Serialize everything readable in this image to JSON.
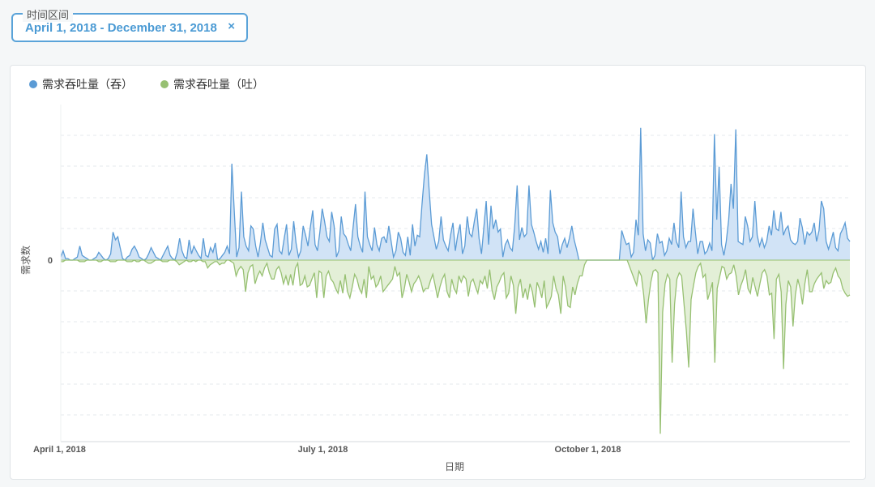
{
  "filter": {
    "label": "时间区间",
    "value": "April 1, 2018 - December 31, 2018",
    "clear_icon": "×"
  },
  "chart_data": {
    "type": "area",
    "title": "",
    "xlabel": "日期",
    "ylabel": "需求数",
    "x_start": "2018-04-01",
    "x_end": "2018-12-31",
    "x_ticks": [
      {
        "date": "2018-04-01",
        "label": "April 1, 2018"
      },
      {
        "date": "2018-07-01",
        "label": "July 1, 2018"
      },
      {
        "date": "2018-10-01",
        "label": "October 1, 2018"
      }
    ],
    "y_ticks": [
      {
        "value": 0,
        "label": "0"
      }
    ],
    "ylim": [
      -115,
      100
    ],
    "grid": true,
    "legend": "top-left",
    "series": [
      {
        "name": "需求吞吐量（吞）",
        "color": "#5b9bd5",
        "fill": "#cfe2f5",
        "values": [
          2,
          6,
          1,
          1,
          0,
          0,
          1,
          2,
          9,
          3,
          2,
          1,
          0,
          0,
          1,
          2,
          5,
          3,
          1,
          0,
          1,
          4,
          18,
          13,
          15,
          8,
          1,
          0,
          2,
          3,
          7,
          9,
          6,
          2,
          1,
          0,
          1,
          4,
          8,
          5,
          2,
          1,
          0,
          3,
          6,
          9,
          3,
          1,
          0,
          5,
          14,
          6,
          2,
          1,
          13,
          4,
          9,
          6,
          3,
          1,
          14,
          3,
          2,
          8,
          5,
          11,
          0,
          1,
          3,
          5,
          9,
          4,
          62,
          31,
          2,
          8,
          44,
          15,
          9,
          6,
          22,
          20,
          9,
          2,
          11,
          24,
          13,
          8,
          3,
          2,
          20,
          23,
          6,
          4,
          14,
          23,
          3,
          7,
          25,
          11,
          2,
          6,
          22,
          16,
          9,
          21,
          32,
          10,
          6,
          18,
          33,
          25,
          15,
          12,
          31,
          22,
          2,
          6,
          28,
          17,
          15,
          10,
          6,
          21,
          36,
          15,
          9,
          5,
          44,
          15,
          10,
          6,
          21,
          10,
          6,
          14,
          15,
          11,
          22,
          12,
          2,
          6,
          18,
          14,
          5,
          3,
          15,
          3,
          23,
          9,
          16,
          15,
          36,
          55,
          68,
          45,
          23,
          15,
          7,
          12,
          28,
          13,
          9,
          6,
          16,
          24,
          6,
          16,
          23,
          4,
          9,
          28,
          17,
          15,
          25,
          33,
          14,
          4,
          21,
          38,
          10,
          35,
          20,
          26,
          18,
          20,
          2,
          10,
          13,
          8,
          6,
          22,
          48,
          13,
          21,
          15,
          17,
          48,
          23,
          18,
          12,
          7,
          12,
          5,
          14,
          4,
          45,
          24,
          18,
          15,
          4,
          10,
          14,
          8,
          14,
          22,
          13,
          7,
          0,
          0,
          0,
          0,
          0,
          0,
          0,
          0,
          0,
          0,
          0,
          0,
          0,
          0,
          0,
          0,
          0,
          0,
          19,
          14,
          10,
          11,
          2,
          5,
          26,
          16,
          85,
          17,
          6,
          13,
          11,
          0,
          3,
          17,
          11,
          12,
          3,
          6,
          14,
          10,
          24,
          12,
          8,
          44,
          15,
          8,
          12,
          12,
          33,
          18,
          4,
          12,
          12,
          4,
          6,
          11,
          6,
          81,
          26,
          60,
          10,
          3,
          12,
          26,
          49,
          33,
          84,
          12,
          11,
          10,
          28,
          22,
          12,
          15,
          38,
          16,
          9,
          14,
          8,
          12,
          22,
          16,
          32,
          20,
          19,
          31,
          16,
          20,
          22,
          13,
          11,
          10,
          12,
          27,
          21,
          10,
          18,
          16,
          18,
          24,
          12,
          19,
          38,
          33,
          12,
          7,
          12,
          18,
          8,
          6,
          17,
          20,
          24,
          14,
          12
        ]
      },
      {
        "name": "需求吞吐量（吐）",
        "color": "#97c072",
        "fill": "#e1eed5",
        "values": [
          1,
          1,
          0,
          0,
          0,
          0,
          0,
          0,
          1,
          1,
          1,
          0,
          0,
          0,
          0,
          0,
          1,
          1,
          0,
          0,
          0,
          1,
          1,
          1,
          0,
          0,
          0,
          0,
          1,
          1,
          1,
          0,
          1,
          1,
          0,
          0,
          1,
          2,
          2,
          1,
          0,
          0,
          0,
          1,
          1,
          1,
          0,
          0,
          0,
          1,
          3,
          2,
          1,
          0,
          1,
          1,
          0,
          1,
          0,
          0,
          1,
          1,
          5,
          3,
          2,
          1,
          1,
          3,
          2,
          2,
          0,
          0,
          1,
          2,
          10,
          6,
          4,
          6,
          20,
          8,
          4,
          3,
          15,
          10,
          7,
          10,
          5,
          2,
          8,
          12,
          12,
          6,
          4,
          8,
          15,
          10,
          16,
          9,
          16,
          5,
          2,
          16,
          15,
          10,
          17,
          16,
          12,
          8,
          24,
          7,
          8,
          24,
          10,
          7,
          12,
          14,
          18,
          21,
          13,
          21,
          9,
          20,
          24,
          17,
          9,
          12,
          18,
          21,
          12,
          24,
          4,
          12,
          10,
          17,
          15,
          10,
          20,
          18,
          16,
          14,
          12,
          4,
          10,
          8,
          24,
          18,
          9,
          14,
          20,
          15,
          13,
          10,
          14,
          20,
          18,
          18,
          13,
          9,
          16,
          24,
          17,
          12,
          9,
          20,
          24,
          12,
          18,
          21,
          10,
          14,
          10,
          12,
          23,
          14,
          12,
          17,
          21,
          13,
          15,
          10,
          18,
          6,
          19,
          25,
          17,
          14,
          10,
          8,
          24,
          21,
          10,
          16,
          34,
          17,
          12,
          24,
          18,
          25,
          15,
          20,
          30,
          14,
          18,
          24,
          13,
          30,
          27,
          23,
          10,
          18,
          22,
          34,
          10,
          17,
          29,
          30,
          17,
          22,
          15,
          10,
          10,
          3,
          0,
          0,
          0,
          0,
          0,
          0,
          0,
          0,
          0,
          0,
          0,
          0,
          0,
          0,
          0,
          0,
          0,
          0,
          4,
          8,
          12,
          16,
          7,
          10,
          22,
          40,
          25,
          14,
          7,
          6,
          8,
          110,
          33,
          15,
          9,
          12,
          65,
          28,
          12,
          8,
          10,
          28,
          45,
          68,
          25,
          16,
          8,
          4,
          2,
          11,
          9,
          25,
          20,
          14,
          65,
          18,
          11,
          4,
          5,
          12,
          9,
          8,
          3,
          10,
          22,
          16,
          12,
          6,
          18,
          21,
          11,
          17,
          23,
          15,
          8,
          6,
          10,
          22,
          21,
          50,
          12,
          9,
          20,
          69,
          28,
          13,
          17,
          42,
          22,
          12,
          18,
          28,
          15,
          6,
          20,
          20,
          15,
          12,
          10,
          8,
          18,
          13,
          15,
          14,
          8,
          5,
          10,
          12,
          18,
          21,
          23,
          22
        ],
        "direction": "down"
      }
    ]
  }
}
